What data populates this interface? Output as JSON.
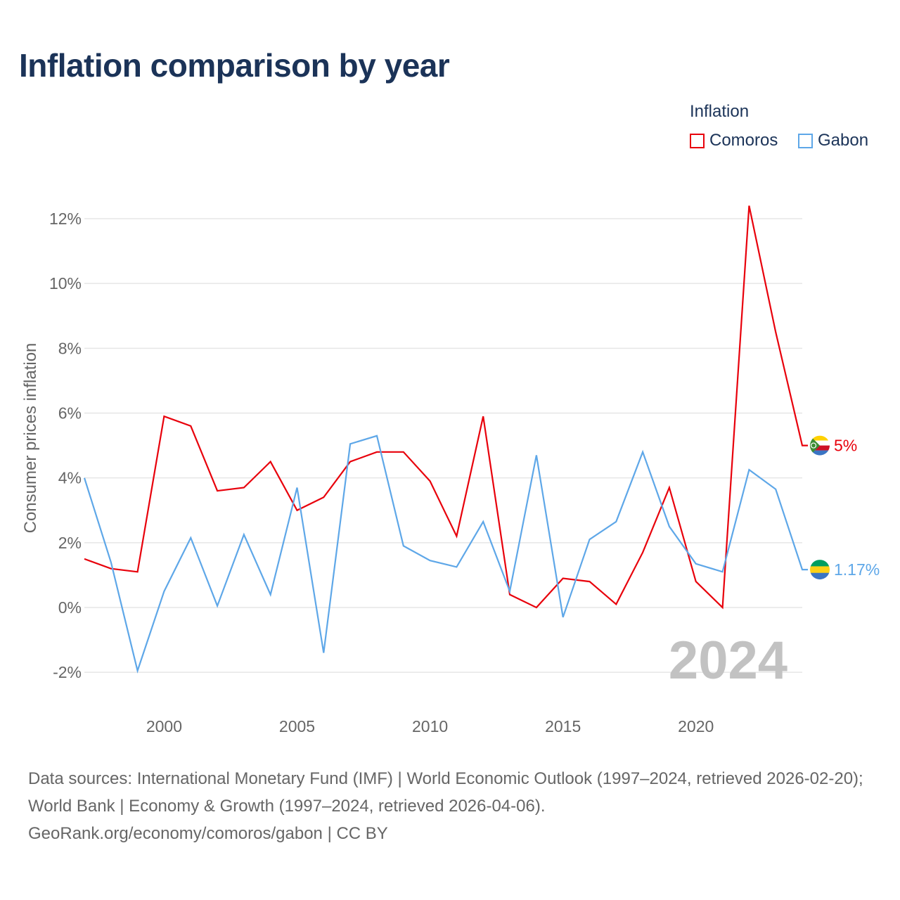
{
  "title": "Inflation comparison by year",
  "legend": {
    "title": "Inflation",
    "items": [
      {
        "label": "Comoros",
        "color": "#e8000b"
      },
      {
        "label": "Gabon",
        "color": "#5ea7e8"
      }
    ]
  },
  "chart_data": {
    "type": "line",
    "title": "Inflation comparison by year",
    "xlabel": "",
    "ylabel": "Consumer prices inflation",
    "xlim": [
      1997,
      2024
    ],
    "ylim": [
      -3,
      13
    ],
    "y_ticks": [
      -2,
      0,
      2,
      4,
      6,
      8,
      10,
      12
    ],
    "y_tick_labels": [
      "-2%",
      "0%",
      "2%",
      "4%",
      "6%",
      "8%",
      "10%",
      "12%"
    ],
    "x_ticks": [
      2000,
      2005,
      2010,
      2015,
      2020
    ],
    "x_tick_labels": [
      "2000",
      "2005",
      "2010",
      "2015",
      "2020"
    ],
    "grid": true,
    "legend_position": "top-right",
    "watermark_year": "2024",
    "x": [
      1997,
      1998,
      1999,
      2000,
      2001,
      2002,
      2003,
      2004,
      2005,
      2006,
      2007,
      2008,
      2009,
      2010,
      2011,
      2012,
      2013,
      2014,
      2015,
      2016,
      2017,
      2018,
      2019,
      2020,
      2021,
      2022,
      2023,
      2024
    ],
    "series": [
      {
        "name": "Comoros",
        "color": "#e8000b",
        "end_label": "5%",
        "values": [
          1.5,
          1.2,
          1.1,
          5.9,
          5.6,
          3.6,
          3.7,
          4.5,
          3.0,
          3.4,
          4.5,
          4.8,
          4.8,
          3.9,
          2.2,
          5.9,
          0.4,
          0.0,
          0.9,
          0.8,
          0.1,
          1.7,
          3.7,
          0.8,
          0.0,
          12.4,
          8.5,
          5.0
        ]
      },
      {
        "name": "Gabon",
        "color": "#5ea7e8",
        "end_label": "1.17%",
        "values": [
          4.0,
          1.4,
          -1.95,
          0.5,
          2.15,
          0.05,
          2.25,
          0.4,
          3.7,
          -1.4,
          5.05,
          5.3,
          1.9,
          1.45,
          1.25,
          2.65,
          0.5,
          4.7,
          -0.3,
          2.1,
          2.65,
          4.8,
          2.5,
          1.35,
          1.1,
          4.25,
          3.65,
          1.17
        ]
      }
    ]
  },
  "footer": {
    "line1": "Data sources: International Monetary Fund (IMF) | World Economic Outlook (1997–2024, retrieved 2026-02-20); World Bank | Economy & Growth (1997–2024, retrieved 2026-04-06).",
    "line2": "GeoRank.org/economy/comoros/gabon | CC BY"
  }
}
